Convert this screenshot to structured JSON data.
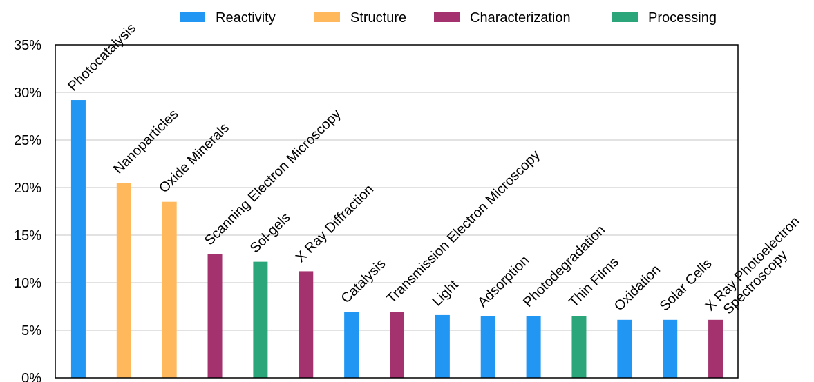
{
  "chart_data": {
    "type": "bar",
    "title": "",
    "xlabel": "",
    "ylabel": "",
    "ylim": [
      0,
      35
    ],
    "yticks": [
      0,
      5,
      10,
      15,
      20,
      25,
      30,
      35
    ],
    "ytick_suffix": "%",
    "grid": "horizontal",
    "legend": {
      "position": "top",
      "entries": [
        {
          "name": "Reactivity",
          "color": "#2196F3"
        },
        {
          "name": "Structure",
          "color": "#FFB85C"
        },
        {
          "name": "Characterization",
          "color": "#A3326E"
        },
        {
          "name": "Processing",
          "color": "#2BA57A"
        }
      ]
    },
    "bars": [
      {
        "label": "Photocatalysis",
        "value": 29.2,
        "group": "Reactivity"
      },
      {
        "label": "Nanoparticles",
        "value": 20.5,
        "group": "Structure"
      },
      {
        "label": "Oxide Minerals",
        "value": 18.5,
        "group": "Structure"
      },
      {
        "label": "Scanning Electron Microscopy",
        "value": 13.0,
        "group": "Characterization"
      },
      {
        "label": "Sol-gels",
        "value": 12.2,
        "group": "Processing"
      },
      {
        "label": "X Ray Diffraction",
        "value": 11.2,
        "group": "Characterization"
      },
      {
        "label": "Catalysis",
        "value": 6.9,
        "group": "Reactivity"
      },
      {
        "label": "Transmission Electron Microscopy",
        "value": 6.9,
        "group": "Characterization"
      },
      {
        "label": "Light",
        "value": 6.6,
        "group": "Reactivity"
      },
      {
        "label": "Adsorption",
        "value": 6.5,
        "group": "Reactivity"
      },
      {
        "label": "Photodegradation",
        "value": 6.5,
        "group": "Reactivity"
      },
      {
        "label": "Thin Films",
        "value": 6.5,
        "group": "Processing"
      },
      {
        "label": "Oxidation",
        "value": 6.1,
        "group": "Reactivity"
      },
      {
        "label": "Solar Cells",
        "value": 6.1,
        "group": "Reactivity"
      },
      {
        "label": "X Ray Photoelectron Spectroscopy",
        "value": 6.1,
        "group": "Characterization",
        "label_lines": [
          "X Ray Photoelectron",
          "Spectroscopy"
        ]
      }
    ]
  }
}
